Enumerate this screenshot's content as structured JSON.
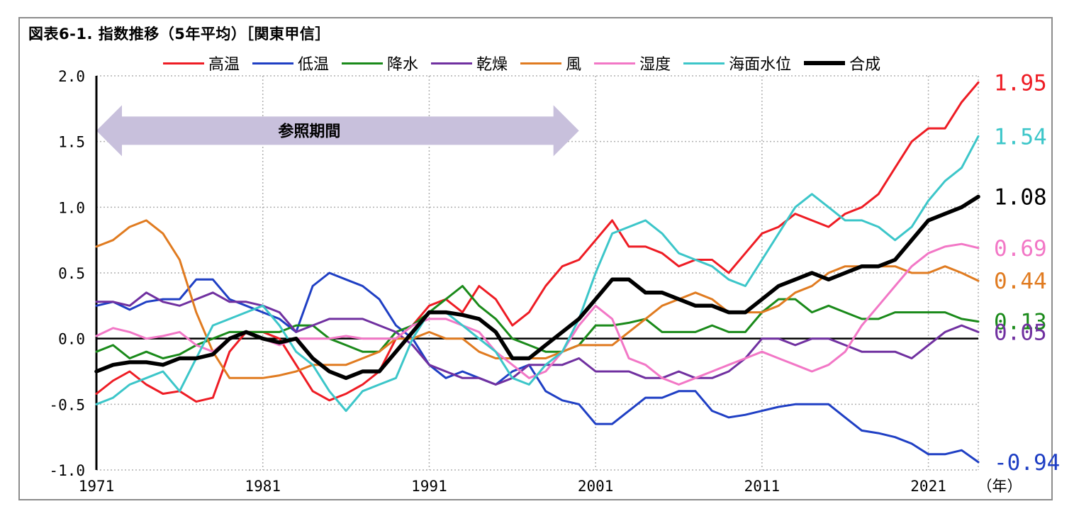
{
  "title": "図表6-1. 指数推移（5年平均）［関東甲信］",
  "chart_data": {
    "type": "line",
    "title": "図表6-1. 指数推移（5年平均）［関東甲信］",
    "xlabel": "",
    "x_unit_label": "（年）",
    "ylabel": "",
    "xlim": [
      1971,
      2024
    ],
    "ylim": [
      -1.0,
      2.0
    ],
    "x_ticks": [
      "1971",
      "1981",
      "1991",
      "2001",
      "2011",
      "2021"
    ],
    "y_ticks": [
      "2.0",
      "1.5",
      "1.0",
      "0.5",
      "0.0",
      "-0.5",
      "-1.0"
    ],
    "grid": true,
    "legend_position": "top",
    "annotation": {
      "text": "参照期間",
      "from": 1971,
      "to": 2000
    },
    "series": [
      {
        "name": "高温",
        "color": "#ee1c24",
        "width": 3,
        "end_label": "1.95",
        "x": [
          1971,
          1972,
          1973,
          1974,
          1975,
          1976,
          1977,
          1978,
          1979,
          1980,
          1981,
          1982,
          1983,
          1984,
          1985,
          1986,
          1987,
          1988,
          1989,
          1990,
          1991,
          1992,
          1993,
          1994,
          1995,
          1996,
          1997,
          1998,
          1999,
          2000,
          2001,
          2002,
          2003,
          2004,
          2005,
          2006,
          2007,
          2008,
          2009,
          2010,
          2011,
          2012,
          2013,
          2014,
          2015,
          2016,
          2017,
          2018,
          2019,
          2020,
          2021,
          2022,
          2023,
          2024
        ],
        "y": [
          -0.42,
          -0.32,
          -0.25,
          -0.35,
          -0.42,
          -0.4,
          -0.48,
          -0.45,
          -0.1,
          0.05,
          0.05,
          0.0,
          -0.2,
          -0.4,
          -0.47,
          -0.42,
          -0.35,
          -0.25,
          0.0,
          0.1,
          0.25,
          0.3,
          0.2,
          0.4,
          0.3,
          0.1,
          0.2,
          0.4,
          0.55,
          0.6,
          0.75,
          0.9,
          0.7,
          0.7,
          0.65,
          0.55,
          0.6,
          0.6,
          0.5,
          0.65,
          0.8,
          0.85,
          0.95,
          0.9,
          0.85,
          0.95,
          1.0,
          1.1,
          1.3,
          1.5,
          1.6,
          1.6,
          1.8,
          1.95
        ]
      },
      {
        "name": "低温",
        "color": "#1f3fc4",
        "width": 3,
        "end_label": "-0.94",
        "x": [
          1971,
          1972,
          1973,
          1974,
          1975,
          1976,
          1977,
          1978,
          1979,
          1980,
          1981,
          1982,
          1983,
          1984,
          1985,
          1986,
          1987,
          1988,
          1989,
          1990,
          1991,
          1992,
          1993,
          1994,
          1995,
          1996,
          1997,
          1998,
          1999,
          2000,
          2001,
          2002,
          2003,
          2004,
          2005,
          2006,
          2007,
          2008,
          2009,
          2010,
          2011,
          2012,
          2013,
          2014,
          2015,
          2016,
          2017,
          2018,
          2019,
          2020,
          2021,
          2022,
          2023,
          2024
        ],
        "y": [
          0.25,
          0.28,
          0.22,
          0.28,
          0.3,
          0.3,
          0.45,
          0.45,
          0.3,
          0.25,
          0.2,
          0.15,
          0.05,
          0.4,
          0.5,
          0.45,
          0.4,
          0.3,
          0.1,
          0.0,
          -0.2,
          -0.3,
          -0.25,
          -0.3,
          -0.35,
          -0.25,
          -0.2,
          -0.4,
          -0.47,
          -0.5,
          -0.65,
          -0.65,
          -0.55,
          -0.45,
          -0.45,
          -0.4,
          -0.4,
          -0.55,
          -0.6,
          -0.58,
          -0.55,
          -0.52,
          -0.5,
          -0.5,
          -0.5,
          -0.6,
          -0.7,
          -0.72,
          -0.75,
          -0.8,
          -0.88,
          -0.88,
          -0.85,
          -0.94
        ]
      },
      {
        "name": "降水",
        "color": "#1a8a1a",
        "width": 3,
        "end_label": "0.13",
        "x": [
          1971,
          1972,
          1973,
          1974,
          1975,
          1976,
          1977,
          1978,
          1979,
          1980,
          1981,
          1982,
          1983,
          1984,
          1985,
          1986,
          1987,
          1988,
          1989,
          1990,
          1991,
          1992,
          1993,
          1994,
          1995,
          1996,
          1997,
          1998,
          1999,
          2000,
          2001,
          2002,
          2003,
          2004,
          2005,
          2006,
          2007,
          2008,
          2009,
          2010,
          2011,
          2012,
          2013,
          2014,
          2015,
          2016,
          2017,
          2018,
          2019,
          2020,
          2021,
          2022,
          2023,
          2024
        ],
        "y": [
          -0.1,
          -0.05,
          -0.15,
          -0.1,
          -0.15,
          -0.12,
          -0.05,
          0.0,
          0.05,
          0.05,
          0.05,
          0.05,
          0.1,
          0.1,
          0.0,
          -0.05,
          -0.1,
          -0.1,
          0.05,
          0.1,
          0.2,
          0.3,
          0.4,
          0.25,
          0.15,
          0.0,
          -0.05,
          -0.1,
          -0.1,
          -0.05,
          0.1,
          0.1,
          0.12,
          0.15,
          0.05,
          0.05,
          0.05,
          0.1,
          0.05,
          0.05,
          0.2,
          0.3,
          0.3,
          0.2,
          0.25,
          0.2,
          0.15,
          0.15,
          0.2,
          0.2,
          0.2,
          0.2,
          0.15,
          0.13
        ]
      },
      {
        "name": "乾燥",
        "color": "#7030a0",
        "width": 3,
        "end_label": "0.05",
        "x": [
          1971,
          1972,
          1973,
          1974,
          1975,
          1976,
          1977,
          1978,
          1979,
          1980,
          1981,
          1982,
          1983,
          1984,
          1985,
          1986,
          1987,
          1988,
          1989,
          1990,
          1991,
          1992,
          1993,
          1994,
          1995,
          1996,
          1997,
          1998,
          1999,
          2000,
          2001,
          2002,
          2003,
          2004,
          2005,
          2006,
          2007,
          2008,
          2009,
          2010,
          2011,
          2012,
          2013,
          2014,
          2015,
          2016,
          2017,
          2018,
          2019,
          2020,
          2021,
          2022,
          2023,
          2024
        ],
        "y": [
          0.28,
          0.28,
          0.25,
          0.35,
          0.28,
          0.25,
          0.3,
          0.35,
          0.28,
          0.28,
          0.25,
          0.2,
          0.05,
          0.1,
          0.15,
          0.15,
          0.15,
          0.1,
          0.05,
          -0.05,
          -0.2,
          -0.25,
          -0.3,
          -0.3,
          -0.35,
          -0.3,
          -0.2,
          -0.2,
          -0.2,
          -0.15,
          -0.25,
          -0.25,
          -0.25,
          -0.3,
          -0.3,
          -0.25,
          -0.3,
          -0.3,
          -0.25,
          -0.15,
          0.0,
          0.0,
          -0.05,
          0.0,
          0.0,
          -0.05,
          -0.1,
          -0.1,
          -0.1,
          -0.15,
          -0.05,
          0.05,
          0.1,
          0.05
        ]
      },
      {
        "name": "風",
        "color": "#e07b20",
        "width": 3,
        "end_label": "0.44",
        "x": [
          1971,
          1972,
          1973,
          1974,
          1975,
          1976,
          1977,
          1978,
          1979,
          1980,
          1981,
          1982,
          1983,
          1984,
          1985,
          1986,
          1987,
          1988,
          1989,
          1990,
          1991,
          1992,
          1993,
          1994,
          1995,
          1996,
          1997,
          1998,
          1999,
          2000,
          2001,
          2002,
          2003,
          2004,
          2005,
          2006,
          2007,
          2008,
          2009,
          2010,
          2011,
          2012,
          2013,
          2014,
          2015,
          2016,
          2017,
          2018,
          2019,
          2020,
          2021,
          2022,
          2023,
          2024
        ],
        "y": [
          0.7,
          0.75,
          0.85,
          0.9,
          0.8,
          0.6,
          0.2,
          -0.1,
          -0.3,
          -0.3,
          -0.3,
          -0.28,
          -0.25,
          -0.2,
          -0.2,
          -0.2,
          -0.15,
          -0.1,
          0.0,
          0.0,
          0.05,
          0.0,
          0.0,
          -0.1,
          -0.15,
          -0.15,
          -0.15,
          -0.15,
          -0.1,
          -0.05,
          -0.05,
          -0.05,
          0.05,
          0.15,
          0.25,
          0.3,
          0.35,
          0.3,
          0.2,
          0.2,
          0.2,
          0.25,
          0.35,
          0.4,
          0.5,
          0.55,
          0.55,
          0.55,
          0.55,
          0.5,
          0.5,
          0.55,
          0.5,
          0.44
        ]
      },
      {
        "name": "湿度",
        "color": "#f277c6",
        "width": 3,
        "end_label": "0.69",
        "x": [
          1971,
          1972,
          1973,
          1974,
          1975,
          1976,
          1977,
          1978,
          1979,
          1980,
          1981,
          1982,
          1983,
          1984,
          1985,
          1986,
          1987,
          1988,
          1989,
          1990,
          1991,
          1992,
          1993,
          1994,
          1995,
          1996,
          1997,
          1998,
          1999,
          2000,
          2001,
          2002,
          2003,
          2004,
          2005,
          2006,
          2007,
          2008,
          2009,
          2010,
          2011,
          2012,
          2013,
          2014,
          2015,
          2016,
          2017,
          2018,
          2019,
          2020,
          2021,
          2022,
          2023,
          2024
        ],
        "y": [
          0.02,
          0.08,
          0.05,
          0.0,
          0.02,
          0.05,
          -0.05,
          -0.1,
          0.0,
          0.05,
          0.0,
          -0.05,
          0.0,
          0.0,
          0.0,
          0.02,
          0.0,
          0.0,
          0.0,
          0.1,
          0.15,
          0.15,
          0.1,
          0.05,
          -0.1,
          -0.2,
          -0.3,
          -0.25,
          -0.1,
          0.1,
          0.25,
          0.15,
          -0.15,
          -0.2,
          -0.3,
          -0.35,
          -0.3,
          -0.25,
          -0.2,
          -0.15,
          -0.1,
          -0.15,
          -0.2,
          -0.25,
          -0.2,
          -0.1,
          0.1,
          0.25,
          0.4,
          0.55,
          0.65,
          0.7,
          0.72,
          0.69
        ]
      },
      {
        "name": "海面水位",
        "color": "#3cc6c9",
        "width": 3,
        "end_label": "1.54",
        "x": [
          1971,
          1972,
          1973,
          1974,
          1975,
          1976,
          1977,
          1978,
          1979,
          1980,
          1981,
          1982,
          1983,
          1984,
          1985,
          1986,
          1987,
          1988,
          1989,
          1990,
          1991,
          1992,
          1993,
          1994,
          1995,
          1996,
          1997,
          1998,
          1999,
          2000,
          2001,
          2002,
          2003,
          2004,
          2005,
          2006,
          2007,
          2008,
          2009,
          2010,
          2011,
          2012,
          2013,
          2014,
          2015,
          2016,
          2017,
          2018,
          2019,
          2020,
          2021,
          2022,
          2023,
          2024
        ],
        "y": [
          -0.5,
          -0.45,
          -0.35,
          -0.3,
          -0.25,
          -0.4,
          -0.15,
          0.1,
          0.15,
          0.2,
          0.25,
          0.1,
          -0.1,
          -0.2,
          -0.4,
          -0.55,
          -0.4,
          -0.35,
          -0.3,
          0.0,
          0.2,
          0.2,
          0.1,
          0.0,
          -0.1,
          -0.3,
          -0.35,
          -0.2,
          -0.1,
          0.15,
          0.5,
          0.8,
          0.85,
          0.9,
          0.8,
          0.65,
          0.6,
          0.55,
          0.45,
          0.4,
          0.6,
          0.8,
          1.0,
          1.1,
          1.0,
          0.9,
          0.9,
          0.85,
          0.75,
          0.85,
          1.05,
          1.2,
          1.3,
          1.54
        ]
      },
      {
        "name": "合成",
        "color": "#000000",
        "width": 5.5,
        "end_label": "1.08",
        "x": [
          1971,
          1972,
          1973,
          1974,
          1975,
          1976,
          1977,
          1978,
          1979,
          1980,
          1981,
          1982,
          1983,
          1984,
          1985,
          1986,
          1987,
          1988,
          1989,
          1990,
          1991,
          1992,
          1993,
          1994,
          1995,
          1996,
          1997,
          1998,
          1999,
          2000,
          2001,
          2002,
          2003,
          2004,
          2005,
          2006,
          2007,
          2008,
          2009,
          2010,
          2011,
          2012,
          2013,
          2014,
          2015,
          2016,
          2017,
          2018,
          2019,
          2020,
          2021,
          2022,
          2023,
          2024
        ],
        "y": [
          -0.25,
          -0.2,
          -0.18,
          -0.18,
          -0.2,
          -0.15,
          -0.15,
          -0.12,
          0.0,
          0.05,
          0.0,
          -0.03,
          0.0,
          -0.15,
          -0.25,
          -0.3,
          -0.25,
          -0.25,
          -0.1,
          0.05,
          0.2,
          0.2,
          0.18,
          0.15,
          0.05,
          -0.15,
          -0.15,
          -0.05,
          0.05,
          0.15,
          0.3,
          0.45,
          0.45,
          0.35,
          0.35,
          0.3,
          0.25,
          0.25,
          0.2,
          0.2,
          0.3,
          0.4,
          0.45,
          0.5,
          0.45,
          0.5,
          0.55,
          0.55,
          0.6,
          0.75,
          0.9,
          0.95,
          1.0,
          1.08
        ]
      }
    ]
  }
}
